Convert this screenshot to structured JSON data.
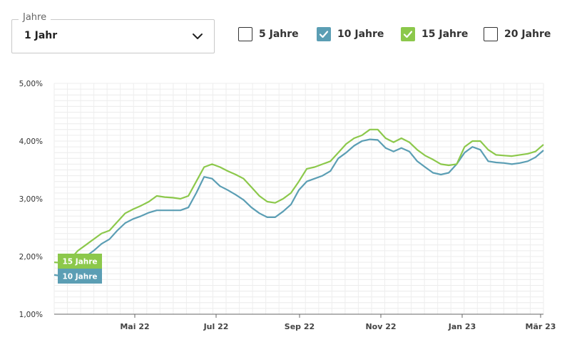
{
  "period_select": {
    "legend": "Jahre",
    "value": "1 Jahr"
  },
  "terms": [
    {
      "label": "5 Jahre",
      "checked": false,
      "color": "#333333"
    },
    {
      "label": "10 Jahre",
      "checked": true,
      "color": "#5b9eb4"
    },
    {
      "label": "15 Jahre",
      "checked": true,
      "color": "#8cc84b"
    },
    {
      "label": "20 Jahre",
      "checked": false,
      "color": "#333333"
    }
  ],
  "chart_data": {
    "type": "line",
    "y_ticks": [
      "1,00%",
      "2,00%",
      "3,00%",
      "4,00%",
      "5,00%"
    ],
    "ylim": [
      1.0,
      5.0
    ],
    "x_ticks": [
      "Mai 22",
      "Jul 22",
      "Sep 22",
      "Nov 22",
      "Jan 23",
      "Mär 23"
    ],
    "grid": true,
    "series": [
      {
        "name": "15 Jahre",
        "color": "#8cc84b",
        "values": [
          1.9,
          1.89,
          1.95,
          2.1,
          2.2,
          2.3,
          2.4,
          2.45,
          2.6,
          2.75,
          2.82,
          2.88,
          2.95,
          3.05,
          3.03,
          3.02,
          3.0,
          3.05,
          3.3,
          3.55,
          3.6,
          3.55,
          3.48,
          3.42,
          3.35,
          3.2,
          3.05,
          2.95,
          2.93,
          3.0,
          3.1,
          3.3,
          3.52,
          3.55,
          3.6,
          3.65,
          3.8,
          3.95,
          4.05,
          4.1,
          4.2,
          4.2,
          4.05,
          3.98,
          4.05,
          3.98,
          3.85,
          3.75,
          3.68,
          3.6,
          3.58,
          3.6,
          3.9,
          4.0,
          4.0,
          3.85,
          3.76,
          3.75,
          3.74,
          3.76,
          3.78,
          3.82,
          3.94
        ]
      },
      {
        "name": "10 Jahre",
        "color": "#5b9eb4",
        "values": [
          1.68,
          1.66,
          1.74,
          1.88,
          2.0,
          2.1,
          2.22,
          2.3,
          2.45,
          2.58,
          2.65,
          2.7,
          2.76,
          2.8,
          2.8,
          2.8,
          2.8,
          2.85,
          3.1,
          3.38,
          3.35,
          3.22,
          3.15,
          3.07,
          2.98,
          2.85,
          2.75,
          2.68,
          2.68,
          2.78,
          2.9,
          3.15,
          3.3,
          3.35,
          3.4,
          3.48,
          3.7,
          3.8,
          3.92,
          4.0,
          4.03,
          4.02,
          3.88,
          3.82,
          3.88,
          3.82,
          3.65,
          3.55,
          3.45,
          3.42,
          3.45,
          3.6,
          3.8,
          3.9,
          3.85,
          3.65,
          3.63,
          3.62,
          3.6,
          3.62,
          3.65,
          3.72,
          3.84
        ]
      }
    ]
  }
}
